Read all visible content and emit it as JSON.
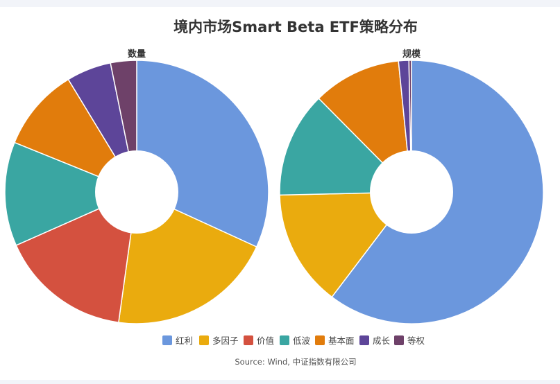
{
  "chart_data": {
    "type": "pie",
    "title": "境内市场Smart Beta ETF策略分布",
    "source": "Source: Wind, 中证指数有限公司",
    "categories": [
      "红利",
      "多因子",
      "价值",
      "低波",
      "基本面",
      "成长",
      "等权"
    ],
    "colors": [
      "#6b97dd",
      "#eaab0e",
      "#d4513f",
      "#3aa6a2",
      "#e17c0c",
      "#5d4599",
      "#6e4169"
    ],
    "legend_position": "bottom",
    "series": [
      {
        "name": "数量",
        "values": [
          31.9,
          20.4,
          16.2,
          12.8,
          10.2,
          5.5,
          3.2
        ],
        "unit": "%"
      },
      {
        "name": "规模",
        "values": [
          57.3,
          13.6,
          0,
          12.3,
          10.3,
          1.2,
          0.3
        ],
        "unit": "%"
      }
    ]
  }
}
